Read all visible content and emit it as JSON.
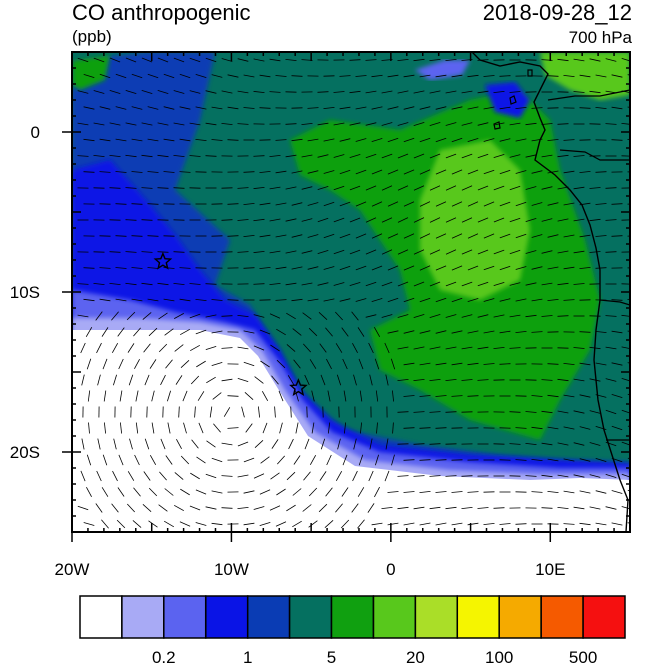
{
  "header": {
    "title": "CO anthropogenic",
    "units": "(ppb)",
    "datetime": "2018-09-28_12",
    "level": "700 hPa"
  },
  "axes": {
    "lon_range": [
      -20,
      15
    ],
    "lat_range": [
      -25,
      5
    ],
    "x_ticks": [
      {
        "value": -20,
        "label": "20W"
      },
      {
        "value": -10,
        "label": "10W"
      },
      {
        "value": 0,
        "label": "0"
      },
      {
        "value": 10,
        "label": "10E"
      }
    ],
    "y_ticks": [
      {
        "value": 0,
        "label": "0"
      },
      {
        "value": -10,
        "label": "10S"
      },
      {
        "value": -20,
        "label": "20S"
      }
    ]
  },
  "colorbar": {
    "colors": [
      "#ffffff",
      "#a8aaf5",
      "#5b63f0",
      "#0a14e6",
      "#0a3cb4",
      "#057060",
      "#10a010",
      "#58c81c",
      "#aade28",
      "#f5f500",
      "#f5aa00",
      "#f55a00",
      "#f51010"
    ],
    "labels": [
      {
        "after_box": 1,
        "text": "0.2"
      },
      {
        "after_box": 3,
        "text": "1"
      },
      {
        "after_box": 5,
        "text": "5"
      },
      {
        "after_box": 7,
        "text": "20"
      },
      {
        "after_box": 9,
        "text": "100"
      },
      {
        "after_box": 11,
        "text": "500"
      }
    ]
  },
  "markers": [
    {
      "name": "star-marker",
      "lon": -14.3,
      "lat": -8.1
    },
    {
      "name": "star-marker",
      "lon": -5.8,
      "lat": -16.0
    }
  ],
  "colors": {
    "background_field": "#057060",
    "blue_plume": "#0a3cb4",
    "bright_blue": "#0a14e6",
    "mid_blue": "#5b63f0",
    "light_blue": "#a8aaf5",
    "clean_air": "#ffffff",
    "green_high": "#10a010",
    "green_higher": "#58c81c",
    "coastline": "#000000"
  }
}
